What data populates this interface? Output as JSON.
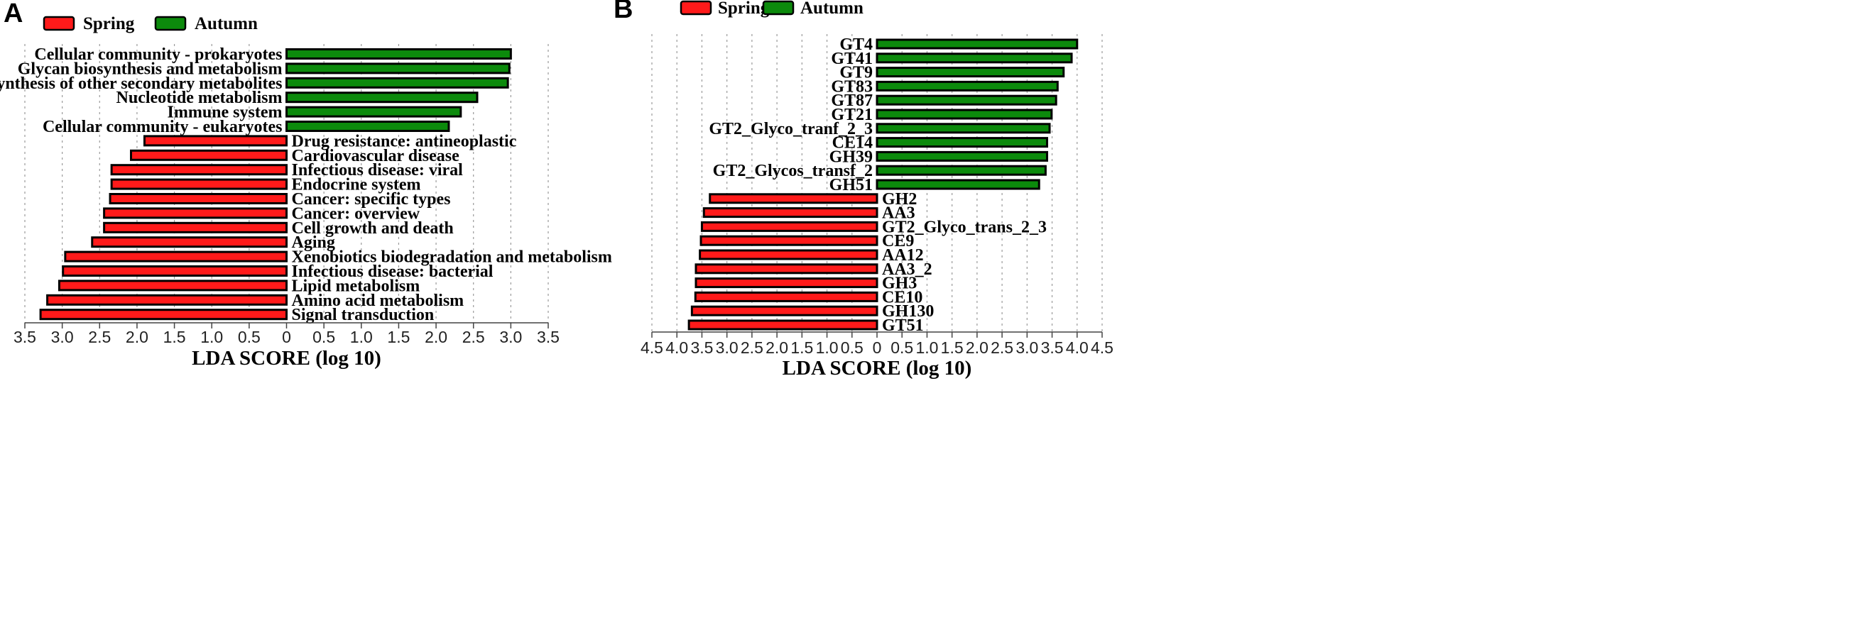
{
  "chart_data": [
    {
      "type": "bar",
      "orientation": "horizontal",
      "panel_label": "A",
      "legend": [
        {
          "name": "Spring",
          "color": "#ff1a1a"
        },
        {
          "name": "Autumn",
          "color": "#0c8a0c"
        }
      ],
      "xlabel": "LDA SCORE (log 10)",
      "xlim": [
        -3.5,
        3.5
      ],
      "ticks": [
        -3.5,
        -3.0,
        -2.5,
        -2.0,
        -1.5,
        -1.0,
        -0.5,
        0,
        0.5,
        1.0,
        1.5,
        2.0,
        2.5,
        3.0,
        3.5
      ],
      "tick_labels": [
        "3.5",
        "3.0",
        "2.5",
        "2.0",
        "1.5",
        "1.0",
        "0.5",
        "0",
        "0.5",
        "1.0",
        "1.5",
        "2.0",
        "2.5",
        "3.0",
        "3.5"
      ],
      "categories": [
        "Cellular community - prokaryotes",
        "Glycan biosynthesis and metabolism",
        "Biosynthesis of other secondary metabolites",
        "Nucleotide metabolism",
        "Immune system",
        "Cellular community - eukaryotes",
        "Drug resistance: antineoplastic",
        "Cardiovascular disease",
        "Infectious disease: viral",
        "Endocrine system",
        "Cancer: specific types",
        "Cancer: overview",
        "Cell growth and death",
        "Aging",
        "Xenobiotics biodegradation and metabolism",
        "Infectious disease: bacterial",
        "Lipid metabolism",
        "Amino acid metabolism",
        "Signal transduction"
      ],
      "values": [
        3.0,
        2.98,
        2.96,
        2.55,
        2.33,
        2.17,
        -1.9,
        -2.08,
        -2.34,
        -2.34,
        -2.36,
        -2.44,
        -2.44,
        -2.6,
        -2.96,
        -2.99,
        -3.04,
        -3.2,
        -3.29
      ],
      "groups": [
        "Autumn",
        "Autumn",
        "Autumn",
        "Autumn",
        "Autumn",
        "Autumn",
        "Spring",
        "Spring",
        "Spring",
        "Spring",
        "Spring",
        "Spring",
        "Spring",
        "Spring",
        "Spring",
        "Spring",
        "Spring",
        "Spring",
        "Spring"
      ]
    },
    {
      "type": "bar",
      "orientation": "horizontal",
      "panel_label": "B",
      "legend": [
        {
          "name": "Spring",
          "color": "#ff1a1a"
        },
        {
          "name": "Autumn",
          "color": "#0c8a0c"
        }
      ],
      "xlabel": "LDA SCORE (log 10)",
      "xlim": [
        -4.5,
        4.5
      ],
      "ticks": [
        -4.5,
        -4.0,
        -3.5,
        -3.0,
        -2.5,
        -2.0,
        -1.5,
        -1.0,
        -0.5,
        0,
        0.5,
        1.0,
        1.5,
        2.0,
        2.5,
        3.0,
        3.5,
        4.0,
        4.5
      ],
      "tick_labels": [
        "4.5",
        "4.0",
        "3.5",
        "3.0",
        "2.5",
        "2.0",
        "1.5",
        "1.0",
        "0.5",
        "0",
        "0.5",
        "1.0",
        "1.5",
        "2.0",
        "2.5",
        "3.0",
        "3.5",
        "4.0",
        "4.5"
      ],
      "categories": [
        "GT4",
        "GT41",
        "GT9",
        "GT83",
        "GT87",
        "GT21",
        "GT2_Glyco_tranf_2_3",
        "CE14",
        "GH39",
        "GT2_Glycos_transf_2",
        "GH51",
        "GH2",
        "AA3",
        "GT2_Glyco_trans_2_3",
        "CE9",
        "AA12",
        "AA3_2",
        "GH3",
        "CE10",
        "GH130",
        "GT51"
      ],
      "values": [
        4.0,
        3.89,
        3.73,
        3.61,
        3.58,
        3.49,
        3.45,
        3.4,
        3.4,
        3.37,
        3.24,
        -3.34,
        -3.46,
        -3.5,
        -3.52,
        -3.54,
        -3.62,
        -3.62,
        -3.63,
        -3.7,
        -3.76
      ],
      "groups": [
        "Autumn",
        "Autumn",
        "Autumn",
        "Autumn",
        "Autumn",
        "Autumn",
        "Autumn",
        "Autumn",
        "Autumn",
        "Autumn",
        "Autumn",
        "Spring",
        "Spring",
        "Spring",
        "Spring",
        "Spring",
        "Spring",
        "Spring",
        "Spring",
        "Spring",
        "Spring"
      ]
    }
  ]
}
